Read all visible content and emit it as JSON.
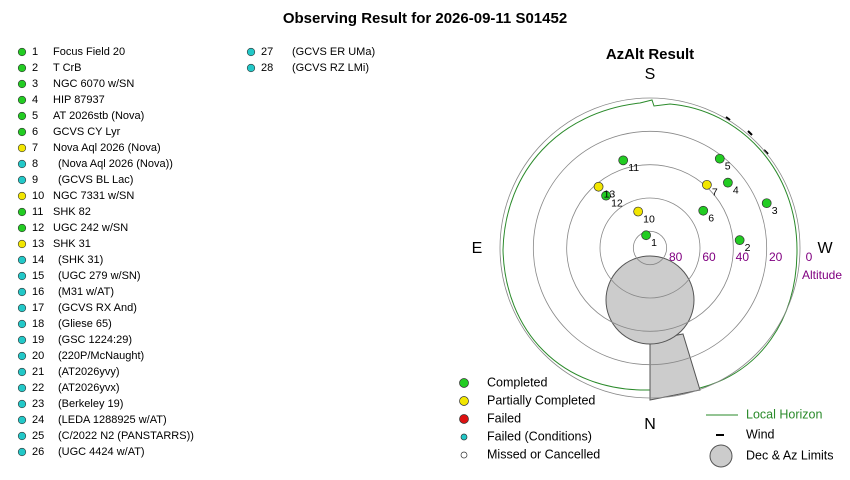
{
  "title": "Observing Result for 2026-09-11 S01452",
  "targets": [
    {
      "number": 1,
      "name": "Focus Field 20",
      "status": "Completed"
    },
    {
      "number": 2,
      "name": "T CrB",
      "status": "Completed"
    },
    {
      "number": 3,
      "name": "NGC 6070 w/SN",
      "status": "Completed"
    },
    {
      "number": 4,
      "name": "HIP 87937",
      "status": "Completed"
    },
    {
      "number": 5,
      "name": "AT 2026stb (Nova)",
      "status": "Completed"
    },
    {
      "number": 6,
      "name": "GCVS CY Lyr",
      "status": "Completed"
    },
    {
      "number": 7,
      "name": "Nova Aql 2026 (Nova)",
      "status": "Partially Completed"
    },
    {
      "number": 8,
      "name": "(Nova Aql 2026 (Nova))",
      "status": "Failed (Conditions)"
    },
    {
      "number": 9,
      "name": "(GCVS BL Lac)",
      "status": "Failed (Conditions)"
    },
    {
      "number": 10,
      "name": "NGC 7331 w/SN",
      "status": "Partially Completed"
    },
    {
      "number": 11,
      "name": "SHK 82",
      "status": "Completed"
    },
    {
      "number": 12,
      "name": "UGC 242 w/SN",
      "status": "Completed"
    },
    {
      "number": 13,
      "name": "SHK 31",
      "status": "Partially Completed"
    },
    {
      "number": 14,
      "name": "(SHK 31)",
      "status": "Failed (Conditions)"
    },
    {
      "number": 15,
      "name": "(UGC 279 w/SN)",
      "status": "Failed (Conditions)"
    },
    {
      "number": 16,
      "name": "(M31 w/AT)",
      "status": "Failed (Conditions)"
    },
    {
      "number": 17,
      "name": "(GCVS RX And)",
      "status": "Failed (Conditions)"
    },
    {
      "number": 18,
      "name": "(Gliese 65)",
      "status": "Failed (Conditions)"
    },
    {
      "number": 19,
      "name": "(GSC 1224:29)",
      "status": "Failed (Conditions)"
    },
    {
      "number": 20,
      "name": "(220P/McNaught)",
      "status": "Failed (Conditions)"
    },
    {
      "number": 21,
      "name": "(AT2026yvy)",
      "status": "Failed (Conditions)"
    },
    {
      "number": 22,
      "name": "(AT2026yvx)",
      "status": "Failed (Conditions)"
    },
    {
      "number": 23,
      "name": "(Berkeley 19)",
      "status": "Failed (Conditions)"
    },
    {
      "number": 24,
      "name": "(LEDA 1288925 w/AT)",
      "status": "Failed (Conditions)"
    },
    {
      "number": 25,
      "name": "(C/2022 N2 (PANSTARRS))",
      "status": "Failed (Conditions)"
    },
    {
      "number": 26,
      "name": "(UGC 4424 w/AT)",
      "status": "Failed (Conditions)"
    },
    {
      "number": 27,
      "name": "(GCVS ER UMa)",
      "status": "Failed (Conditions)"
    },
    {
      "number": 28,
      "name": "(GCVS RZ LMi)",
      "status": "Failed (Conditions)"
    }
  ],
  "chart_data": {
    "type": "polar",
    "title": "AzAlt Result",
    "compass": [
      "S",
      "N",
      "E",
      "W"
    ],
    "r_label": "Altitude",
    "rlim": [
      90,
      0
    ],
    "rticks": [
      80,
      60,
      40,
      20,
      0
    ],
    "legend": [
      {
        "name": "Completed",
        "color": "#22cc22"
      },
      {
        "name": "Partially Completed",
        "color": "#f2e600"
      },
      {
        "name": "Failed",
        "color": "#dd1111"
      },
      {
        "name": "Failed (Conditions)",
        "color": "#22c8c8"
      },
      {
        "name": "Missed or Cancelled",
        "color": "#ffffff"
      }
    ],
    "extra_legend": [
      "Local Horizon",
      "Wind",
      "Dec & Az Limits"
    ],
    "points": [
      {
        "label": 1,
        "az": 163,
        "alt": 82,
        "status": "Completed"
      },
      {
        "label": 2,
        "az": 265,
        "alt": 36,
        "status": "Completed"
      },
      {
        "label": 3,
        "az": 249,
        "alt": 15,
        "status": "Completed"
      },
      {
        "label": 4,
        "az": 230,
        "alt": 29,
        "status": "Completed"
      },
      {
        "label": 5,
        "az": 218,
        "alt": 22,
        "status": "Completed"
      },
      {
        "label": 6,
        "az": 235,
        "alt": 51,
        "status": "Completed"
      },
      {
        "label": 7,
        "az": 222,
        "alt": 39,
        "status": "Partially Completed"
      },
      {
        "label": 10,
        "az": 162,
        "alt": 67,
        "status": "Partially Completed"
      },
      {
        "label": 11,
        "az": 163,
        "alt": 35,
        "status": "Completed"
      },
      {
        "label": 12,
        "az": 140,
        "alt": 49,
        "status": "Completed"
      },
      {
        "label": 13,
        "az": 140,
        "alt": 42,
        "status": "Partially Completed"
      }
    ]
  }
}
